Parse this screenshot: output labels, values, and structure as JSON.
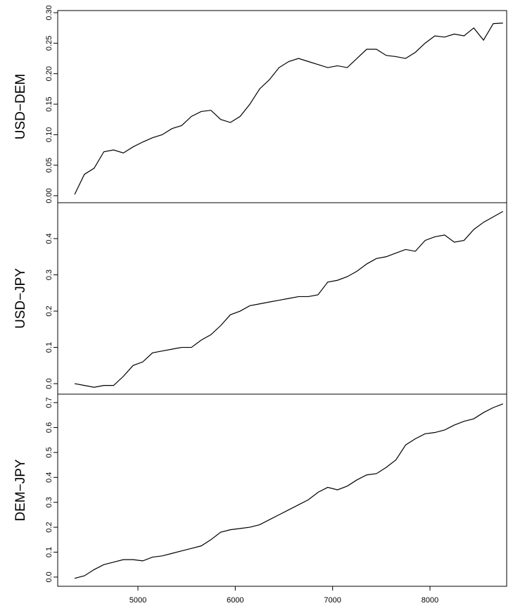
{
  "chart_data": [
    {
      "type": "line",
      "ylabel": "USD−DEM",
      "color": "#000000",
      "x": [
        4350,
        4450,
        4550,
        4650,
        4750,
        4850,
        4950,
        5050,
        5150,
        5250,
        5350,
        5450,
        5550,
        5650,
        5750,
        5850,
        5950,
        6050,
        6150,
        6250,
        6350,
        6450,
        6550,
        6650,
        6750,
        6850,
        6950,
        7050,
        7150,
        7250,
        7350,
        7450,
        7550,
        7650,
        7750,
        7850,
        7950,
        8050,
        8150,
        8250,
        8350,
        8450,
        8550,
        8650,
        8750
      ],
      "values": [
        0.002,
        0.035,
        0.045,
        0.072,
        0.075,
        0.07,
        0.08,
        0.088,
        0.095,
        0.1,
        0.11,
        0.115,
        0.13,
        0.138,
        0.14,
        0.125,
        0.12,
        0.13,
        0.15,
        0.175,
        0.19,
        0.21,
        0.22,
        0.225,
        0.22,
        0.215,
        0.21,
        0.213,
        0.21,
        0.225,
        0.24,
        0.24,
        0.23,
        0.228,
        0.225,
        0.235,
        0.25,
        0.262,
        0.26,
        0.265,
        0.262,
        0.275,
        0.255,
        0.282,
        0.283
      ],
      "xlim": [
        4176,
        8788
      ],
      "ylim": [
        -0.0115,
        0.3035
      ],
      "yticks": [
        {
          "value": 0,
          "label": "0.00"
        },
        {
          "value": 0.05,
          "label": "0.05"
        },
        {
          "value": 0.1,
          "label": "0.10"
        },
        {
          "value": 0.15,
          "label": "0.15"
        },
        {
          "value": 0.2,
          "label": "0.20"
        },
        {
          "value": 0.25,
          "label": "0.25"
        },
        {
          "value": 0.3,
          "label": "0.30"
        }
      ]
    },
    {
      "type": "line",
      "ylabel": "USD−JPY",
      "color": "#000000",
      "x": [
        4350,
        4450,
        4550,
        4650,
        4750,
        4850,
        4950,
        5050,
        5150,
        5250,
        5350,
        5450,
        5550,
        5650,
        5750,
        5850,
        5950,
        6050,
        6150,
        6250,
        6350,
        6450,
        6550,
        6650,
        6750,
        6850,
        6950,
        7050,
        7150,
        7250,
        7350,
        7450,
        7550,
        7650,
        7750,
        7850,
        7950,
        8050,
        8150,
        8250,
        8350,
        8450,
        8550,
        8650,
        8750
      ],
      "values": [
        0.0,
        -0.005,
        -0.01,
        -0.005,
        -0.005,
        0.02,
        0.05,
        0.06,
        0.085,
        0.09,
        0.095,
        0.1,
        0.1,
        0.12,
        0.135,
        0.16,
        0.19,
        0.2,
        0.215,
        0.22,
        0.225,
        0.23,
        0.235,
        0.24,
        0.24,
        0.245,
        0.28,
        0.285,
        0.295,
        0.31,
        0.33,
        0.345,
        0.35,
        0.36,
        0.37,
        0.365,
        0.395,
        0.405,
        0.41,
        0.39,
        0.395,
        0.425,
        0.445,
        0.46,
        0.475
      ],
      "xlim": [
        4176,
        8788
      ],
      "ylim": [
        -0.029,
        0.499
      ],
      "yticks": [
        {
          "value": 0,
          "label": "0.0"
        },
        {
          "value": 0.1,
          "label": "0.1"
        },
        {
          "value": 0.2,
          "label": "0.2"
        },
        {
          "value": 0.3,
          "label": "0.3"
        },
        {
          "value": 0.4,
          "label": "0.4"
        }
      ]
    },
    {
      "type": "line",
      "ylabel": "DEM−JPY",
      "color": "#000000",
      "x": [
        4350,
        4450,
        4550,
        4650,
        4750,
        4850,
        4950,
        5050,
        5150,
        5250,
        5350,
        5450,
        5550,
        5650,
        5750,
        5850,
        5950,
        6050,
        6150,
        6250,
        6350,
        6450,
        6550,
        6650,
        6750,
        6850,
        6950,
        7050,
        7150,
        7250,
        7350,
        7450,
        7550,
        7650,
        7750,
        7850,
        7950,
        8050,
        8150,
        8250,
        8350,
        8450,
        8550,
        8650,
        8750
      ],
      "values": [
        -0.005,
        0.005,
        0.03,
        0.05,
        0.06,
        0.07,
        0.07,
        0.065,
        0.08,
        0.085,
        0.095,
        0.105,
        0.115,
        0.125,
        0.15,
        0.18,
        0.19,
        0.195,
        0.2,
        0.21,
        0.23,
        0.25,
        0.27,
        0.29,
        0.31,
        0.34,
        0.36,
        0.35,
        0.365,
        0.39,
        0.41,
        0.415,
        0.44,
        0.47,
        0.53,
        0.555,
        0.575,
        0.58,
        0.59,
        0.61,
        0.625,
        0.635,
        0.66,
        0.68,
        0.695
      ],
      "xlim": [
        4176,
        8788
      ],
      "ylim": [
        -0.037,
        0.734
      ],
      "yticks": [
        {
          "value": 0,
          "label": "0.0"
        },
        {
          "value": 0.1,
          "label": "0.1"
        },
        {
          "value": 0.2,
          "label": "0.2"
        },
        {
          "value": 0.3,
          "label": "0.3"
        },
        {
          "value": 0.4,
          "label": "0.4"
        },
        {
          "value": 0.5,
          "label": "0.5"
        },
        {
          "value": 0.6,
          "label": "0.6"
        },
        {
          "value": 0.7,
          "label": "0.7"
        }
      ],
      "xticks": [
        5000,
        6000,
        7000,
        8000
      ]
    }
  ]
}
